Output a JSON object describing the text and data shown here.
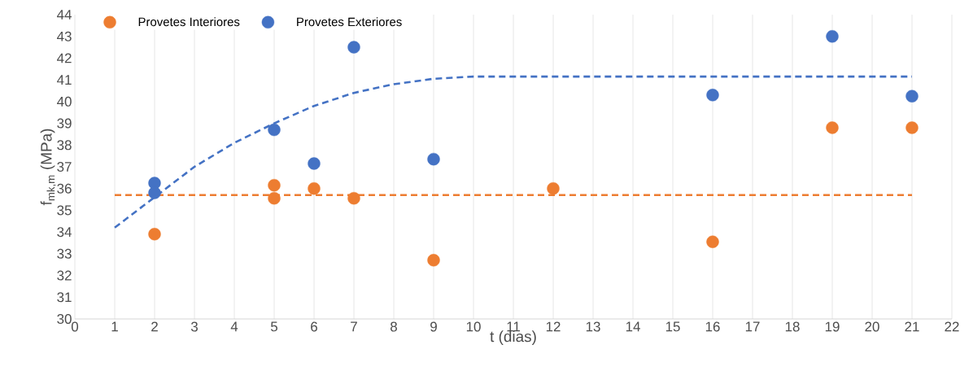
{
  "chart_data": {
    "type": "scatter",
    "xlabel": "t (dias)",
    "ylabel": "f$_{mk,m}$ (MPa)",
    "xlim": [
      0,
      22
    ],
    "ylim": [
      30,
      44
    ],
    "xticks": [
      0,
      1,
      2,
      3,
      4,
      5,
      6,
      7,
      8,
      9,
      10,
      11,
      12,
      13,
      14,
      15,
      16,
      17,
      18,
      19,
      20,
      21,
      22
    ],
    "yticks": [
      30,
      31,
      32,
      33,
      34,
      35,
      36,
      37,
      38,
      39,
      40,
      41,
      42,
      43,
      44
    ],
    "grid": "x",
    "legend": "top left",
    "marker": "circle",
    "series": [
      {
        "name": "Provetes Interiores",
        "color": "#ed7d31",
        "x": [
          2,
          5,
          5,
          6,
          7,
          9,
          12,
          16,
          19,
          21
        ],
        "values": [
          33.9,
          36.15,
          35.55,
          36.0,
          35.55,
          32.7,
          36.0,
          33.55,
          38.8,
          38.8
        ]
      },
      {
        "name": "Provetes Exteriores",
        "color": "#4472c4",
        "x": [
          2,
          2,
          5,
          6,
          7,
          9,
          16,
          19,
          21
        ],
        "values": [
          36.25,
          35.8,
          38.7,
          37.15,
          42.5,
          37.35,
          40.3,
          43.0,
          40.25
        ]
      },
      {
        "type": "line",
        "line_style": "dashed",
        "marker": "none",
        "color": "#ed7d31",
        "x": [
          1,
          21
        ],
        "values": [
          35.7,
          35.7
        ]
      },
      {
        "type": "line",
        "line_style": "dashed",
        "marker": "none",
        "color": "#4472c4",
        "x": [
          1,
          2,
          3,
          4,
          5,
          6,
          7,
          8,
          9,
          10,
          11,
          21
        ],
        "values": [
          34.2,
          35.6,
          37.0,
          38.1,
          39.0,
          39.8,
          40.4,
          40.8,
          41.05,
          41.15,
          41.15,
          41.15
        ]
      }
    ]
  }
}
